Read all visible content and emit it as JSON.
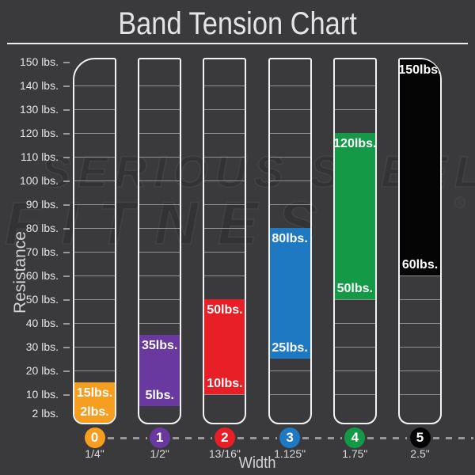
{
  "page": {
    "background": "#3a3a3c"
  },
  "header": {
    "title": "Band Tension Chart"
  },
  "axes": {
    "y_label": "Resistance",
    "x_label": "Width",
    "y_ticks": [
      {
        "value": 150,
        "label": "150 lbs."
      },
      {
        "value": 140,
        "label": "140 lbs."
      },
      {
        "value": 130,
        "label": "130 lbs."
      },
      {
        "value": 120,
        "label": "120 lbs."
      },
      {
        "value": 110,
        "label": "110 lbs."
      },
      {
        "value": 100,
        "label": "100 lbs."
      },
      {
        "value": 90,
        "label": "90 lbs."
      },
      {
        "value": 80,
        "label": "80 lbs."
      },
      {
        "value": 70,
        "label": "70 lbs."
      },
      {
        "value": 60,
        "label": "60 lbs."
      },
      {
        "value": 50,
        "label": "50 lbs."
      },
      {
        "value": 40,
        "label": "40 lbs."
      },
      {
        "value": 30,
        "label": "30 lbs."
      },
      {
        "value": 20,
        "label": "20 lbs."
      },
      {
        "value": 10,
        "label": "10 lbs."
      },
      {
        "value": 2,
        "label": "2 lbs."
      }
    ]
  },
  "watermark": {
    "line1": "SERIOUS STEEL",
    "line2": "FITNESS",
    "registered": "®"
  },
  "chart_data": {
    "type": "bar",
    "title": "Band Tension Chart",
    "xlabel": "Width",
    "ylabel": "Resistance",
    "units": "lbs",
    "ylim": [
      2,
      150
    ],
    "grid": true,
    "series": [
      {
        "band_number": "0",
        "width": "1/4\"",
        "min": 2,
        "max": 15,
        "min_label": "2lbs.",
        "max_label": "15lbs.",
        "color": "#F59E1F"
      },
      {
        "band_number": "1",
        "width": "1/2\"",
        "min": 5,
        "max": 35,
        "min_label": "5lbs.",
        "max_label": "35lbs.",
        "color": "#6939A0"
      },
      {
        "band_number": "2",
        "width": "13/16\"",
        "min": 10,
        "max": 50,
        "min_label": "10lbs.",
        "max_label": "50lbs.",
        "color": "#E81F26"
      },
      {
        "band_number": "3",
        "width": "1.125\"",
        "min": 25,
        "max": 80,
        "min_label": "25lbs.",
        "max_label": "80lbs.",
        "color": "#1E78C2"
      },
      {
        "band_number": "4",
        "width": "1.75\"",
        "min": 50,
        "max": 120,
        "min_label": "50lbs.",
        "max_label": "120lbs.",
        "color": "#149A47"
      },
      {
        "band_number": "5",
        "width": "2.5\"",
        "min": 60,
        "max": 150,
        "min_label": "60lbs.",
        "max_label": "150lbs.",
        "color": "#050505"
      }
    ]
  }
}
